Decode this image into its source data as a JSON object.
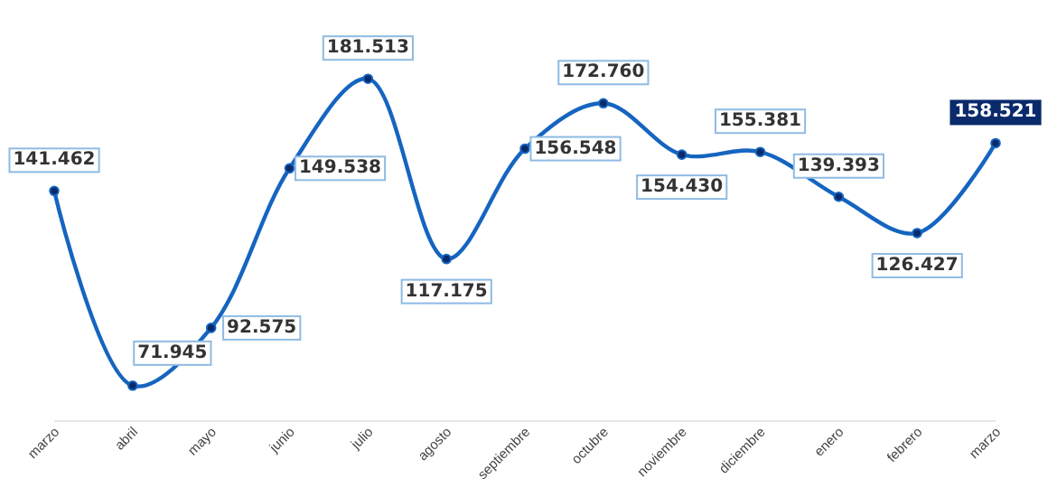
{
  "chart_data": {
    "type": "line",
    "categories": [
      "marzo",
      "abril",
      "mayo",
      "junio",
      "julio",
      "agosto",
      "septiembre",
      "octubre",
      "noviembre",
      "diciembre",
      "enero",
      "febrero",
      "marzo"
    ],
    "series": [
      {
        "color": "#1565c0",
        "values": [
          141.462,
          71.945,
          92.575,
          149.538,
          181.513,
          117.175,
          156.548,
          172.76,
          154.43,
          155.381,
          139.393,
          126.427,
          158.521
        ],
        "value_labels": [
          "141.462",
          "71.945",
          "92.575",
          "149.538",
          "181.513",
          "117.175",
          "156.548",
          "172.760",
          "154.430",
          "155.381",
          "139.393",
          "126.427",
          "158.521"
        ]
      }
    ],
    "marker": "circle",
    "line_style": "solid",
    "grid": false
  }
}
